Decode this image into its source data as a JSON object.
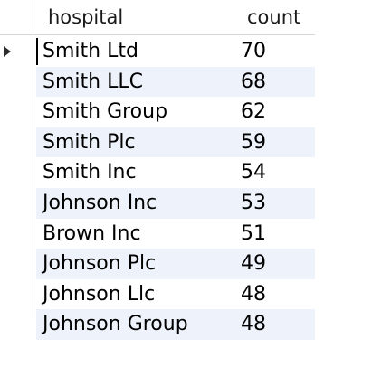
{
  "columns": {
    "hospital": "hospital",
    "count": "count"
  },
  "rows": [
    {
      "hospital": "Smith Ltd",
      "count": "70"
    },
    {
      "hospital": "Smith LLC",
      "count": "68"
    },
    {
      "hospital": "Smith Group",
      "count": "62"
    },
    {
      "hospital": "Smith Plc",
      "count": "59"
    },
    {
      "hospital": "Smith Inc",
      "count": "54"
    },
    {
      "hospital": "Johnson Inc",
      "count": "53"
    },
    {
      "hospital": "Brown Inc",
      "count": "51"
    },
    {
      "hospital": "Johnson Plc",
      "count": "49"
    },
    {
      "hospital": "Johnson Llc",
      "count": "48"
    },
    {
      "hospital": "Johnson Group",
      "count": "48"
    }
  ],
  "selected_row": 0,
  "colors": {
    "alt_row": "#eef3fb",
    "border": "#c8c8c8"
  },
  "icons": {
    "current_row": "row-pointer-icon"
  }
}
